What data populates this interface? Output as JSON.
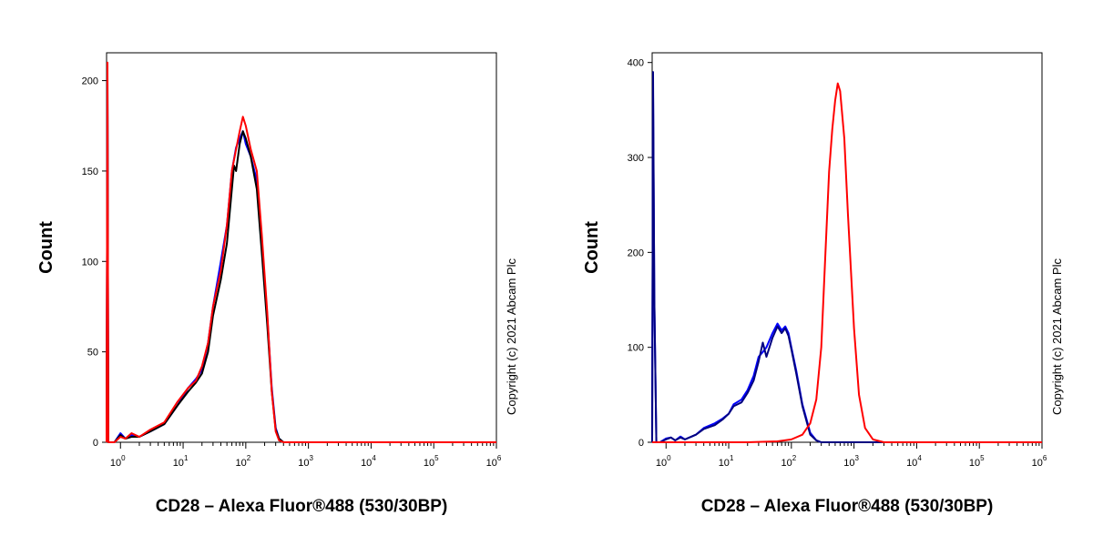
{
  "chart_data": [
    {
      "type": "line",
      "xlabel": "CD28 – Alexa Fluor®488 (530/30BP)",
      "ylabel": "Count",
      "x_scale": "log",
      "xlim": [
        0.6,
        1000000
      ],
      "ylim": [
        0,
        210
      ],
      "yticks": [
        0,
        50,
        100,
        150,
        200
      ],
      "xticks": [
        {
          "value": 1,
          "base": "10",
          "exp": "0"
        },
        {
          "value": 10,
          "base": "10",
          "exp": "1"
        },
        {
          "value": 100,
          "base": "10",
          "exp": "2"
        },
        {
          "value": 1000,
          "base": "10",
          "exp": "3"
        },
        {
          "value": 10000,
          "base": "10",
          "exp": "4"
        },
        {
          "value": 100000,
          "base": "10",
          "exp": "5"
        },
        {
          "value": 1000000,
          "base": "10",
          "exp": "6"
        }
      ],
      "annotation": "Copyright (c) 2021 Abcam Plc",
      "series": [
        {
          "color": "#0000ff",
          "x": [
            0.6,
            0.62,
            0.64,
            0.7,
            0.8,
            1,
            1.2,
            1.5,
            2,
            3,
            5,
            8,
            12,
            16,
            20,
            25,
            30,
            40,
            50,
            60,
            70,
            80,
            90,
            100,
            120,
            150,
            180,
            220,
            260,
            300,
            340,
            400,
            1000,
            10000,
            100000,
            1000000
          ],
          "y": [
            0,
            205,
            0,
            0,
            0,
            5,
            2,
            4,
            3,
            6,
            10,
            20,
            30,
            35,
            40,
            55,
            75,
            100,
            120,
            150,
            163,
            168,
            172,
            165,
            158,
            145,
            110,
            70,
            30,
            8,
            2,
            0,
            0,
            0,
            0,
            0
          ]
        },
        {
          "color": "#000000",
          "x": [
            0.6,
            0.62,
            0.64,
            0.7,
            0.8,
            1,
            1.2,
            1.5,
            2,
            3,
            5,
            8,
            12,
            16,
            20,
            25,
            30,
            40,
            50,
            60,
            65,
            70,
            80,
            90,
            100,
            120,
            150,
            180,
            220,
            260,
            300,
            340,
            400,
            1000,
            10000,
            100000,
            1000000
          ],
          "y": [
            0,
            208,
            0,
            0,
            0,
            4,
            2,
            3,
            3,
            6,
            10,
            20,
            28,
            33,
            38,
            50,
            70,
            90,
            110,
            140,
            153,
            150,
            165,
            172,
            168,
            158,
            140,
            105,
            65,
            28,
            7,
            2,
            0,
            0,
            0,
            0,
            0
          ]
        },
        {
          "color": "#ff0000",
          "x": [
            0.6,
            0.62,
            0.64,
            0.7,
            0.8,
            1,
            1.2,
            1.5,
            2,
            3,
            5,
            8,
            12,
            16,
            20,
            25,
            30,
            40,
            50,
            60,
            70,
            80,
            90,
            100,
            120,
            150,
            180,
            220,
            260,
            300,
            340,
            400,
            1000,
            10000,
            100000,
            1000000
          ],
          "y": [
            0,
            210,
            0,
            0,
            0,
            3,
            2,
            5,
            3,
            7,
            11,
            22,
            30,
            34,
            42,
            55,
            75,
            95,
            120,
            150,
            162,
            172,
            180,
            175,
            162,
            150,
            115,
            72,
            28,
            6,
            1,
            0,
            0,
            0,
            0,
            0
          ]
        }
      ]
    },
    {
      "type": "line",
      "xlabel": "CD28 – Alexa Fluor®488 (530/30BP)",
      "ylabel": "Count",
      "x_scale": "log",
      "xlim": [
        0.6,
        1000000
      ],
      "ylim": [
        0,
        400
      ],
      "yticks": [
        0,
        100,
        200,
        300,
        400
      ],
      "xticks": [
        {
          "value": 1,
          "base": "10",
          "exp": "0"
        },
        {
          "value": 10,
          "base": "10",
          "exp": "1"
        },
        {
          "value": 100,
          "base": "10",
          "exp": "2"
        },
        {
          "value": 1000,
          "base": "10",
          "exp": "3"
        },
        {
          "value": 10000,
          "base": "10",
          "exp": "4"
        },
        {
          "value": 100000,
          "base": "10",
          "exp": "5"
        },
        {
          "value": 1000000,
          "base": "10",
          "exp": "6"
        }
      ],
      "annotation": "Copyright (c) 2021 Abcam Plc",
      "series": [
        {
          "color": "#0000ff",
          "x": [
            0.6,
            0.62,
            0.65,
            0.7,
            0.8,
            1,
            1.2,
            1.4,
            1.7,
            2,
            3,
            4,
            6,
            8,
            10,
            12,
            16,
            20,
            25,
            30,
            35,
            40,
            50,
            60,
            70,
            80,
            90,
            100,
            120,
            150,
            200,
            250,
            300,
            1000,
            10000,
            100000,
            1000000
          ],
          "y": [
            0,
            370,
            150,
            0,
            0,
            4,
            5,
            2,
            6,
            3,
            8,
            15,
            20,
            25,
            30,
            40,
            45,
            55,
            70,
            90,
            95,
            100,
            115,
            125,
            118,
            122,
            115,
            100,
            75,
            40,
            10,
            2,
            0,
            0,
            0,
            0,
            0
          ]
        },
        {
          "color": "#000080",
          "x": [
            0.6,
            0.62,
            0.65,
            0.7,
            0.8,
            1,
            1.2,
            1.4,
            1.7,
            2,
            3,
            4,
            6,
            8,
            10,
            12,
            16,
            20,
            25,
            30,
            35,
            40,
            50,
            60,
            70,
            80,
            90,
            100,
            120,
            150,
            200,
            250,
            300,
            1000,
            10000,
            100000,
            1000000
          ],
          "y": [
            0,
            390,
            150,
            0,
            0,
            3,
            5,
            2,
            5,
            3,
            8,
            14,
            18,
            24,
            30,
            38,
            42,
            52,
            65,
            85,
            105,
            90,
            110,
            122,
            115,
            120,
            112,
            98,
            72,
            38,
            8,
            2,
            0,
            0,
            0,
            0,
            0
          ]
        },
        {
          "color": "#ff0000",
          "x": [
            0.6,
            20,
            60,
            100,
            150,
            200,
            250,
            300,
            350,
            400,
            450,
            500,
            550,
            600,
            700,
            800,
            1000,
            1200,
            1500,
            2000,
            3000,
            10000,
            1000000
          ],
          "y": [
            0,
            0,
            1,
            3,
            8,
            20,
            45,
            100,
            200,
            285,
            330,
            360,
            378,
            370,
            320,
            240,
            120,
            50,
            15,
            3,
            0,
            0,
            0
          ]
        }
      ]
    }
  ]
}
